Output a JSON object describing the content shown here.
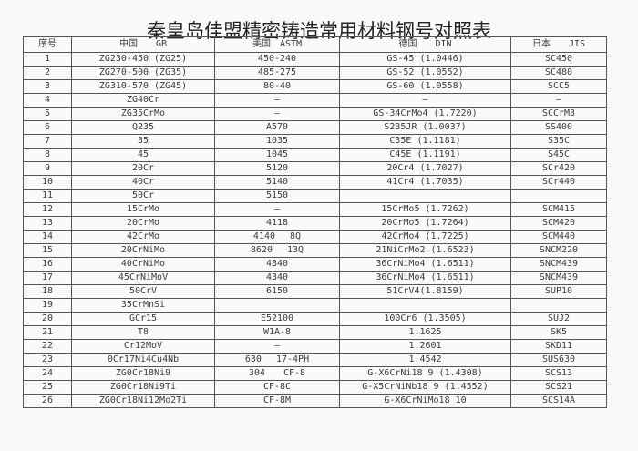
{
  "title": "秦皇岛佳盟精密铸造常用材料钢号对照表",
  "headers": [
    "序号",
    "中国　　GB",
    "美国　ASTM",
    "德国　　DIN",
    "日本　　JIS"
  ],
  "rows": [
    [
      "1",
      "ZG230-450 (ZG25)",
      "450-240",
      "GS-45 (1.0446)",
      "SC450"
    ],
    [
      "2",
      "ZG270-500 (ZG35)",
      "485-275",
      "GS-52 (1.0552)",
      "SC480"
    ],
    [
      "3",
      "ZG310-570 (ZG45)",
      "80-40",
      "GS-60 (1.0558)",
      "SCC5"
    ],
    [
      "4",
      "ZG40Cr",
      "—",
      "—",
      "—"
    ],
    [
      "5",
      "ZG35CrMo",
      "—",
      "GS-34CrMo4 (1.7220)",
      "SCCrM3"
    ],
    [
      "6",
      "Q235",
      "A570",
      "S235JR (1.0037)",
      "SS400"
    ],
    [
      "7",
      "35",
      "1035",
      "C35E (1.1181)",
      "S35C"
    ],
    [
      "8",
      "45",
      "1045",
      "C45E (1.1191)",
      "S45C"
    ],
    [
      "9",
      "20Cr",
      "5120",
      "20Cr4 (1.7027)",
      "SCr420"
    ],
    [
      "10",
      "40Cr",
      "5140",
      "41Cr4 (1.7035)",
      "SCr440"
    ],
    [
      "11",
      "50Cr",
      "5150",
      "",
      ""
    ],
    [
      "12",
      "15CrMo",
      "—",
      "15CrMo5 (1.7262)",
      "SCM415"
    ],
    [
      "13",
      "20CrMo",
      "4118",
      "20CrMo5 (1.7264)",
      "SCM420"
    ],
    [
      "14",
      "42CrMo",
      "4140　 8Q",
      "42CrMo4 (1.7225)",
      "SCM440"
    ],
    [
      "15",
      "20CrNiMo",
      "8620　 13Q",
      "21NiCrMo2 (1.6523)",
      "SNCM220"
    ],
    [
      "16",
      "40CrNiMo",
      "4340",
      "36CrNiMo4 (1.6511)",
      "SNCM439"
    ],
    [
      "17",
      "45CrNiMoV",
      "4340",
      "36CrNiMo4 (1.6511)",
      "SNCM439"
    ],
    [
      "18",
      "50CrV",
      "6150",
      "51CrV4(1.8159)",
      "SUP10"
    ],
    [
      "19",
      "35CrMnSi",
      "",
      "",
      ""
    ],
    [
      "20",
      "GCr15",
      "E52100",
      "100Cr6 (1.3505)",
      "SUJ2"
    ],
    [
      "21",
      "T8",
      "W1A-8",
      "1.1625",
      "SK5"
    ],
    [
      "22",
      "Cr12MoV",
      "—",
      "1.2601",
      "SKD11"
    ],
    [
      "23",
      "0Cr17Ni4Cu4Nb",
      "630　 17-4PH",
      "1.4542",
      "SUS630"
    ],
    [
      "24",
      "ZG0Cr18Ni9",
      "304　　CF-8",
      "G-X6CrNi18 9 (1.4308)",
      "SCS13"
    ],
    [
      "25",
      "ZG0Cr18Ni9Ti",
      "CF-8C",
      "G-X5CrNiNb18 9 (1.4552)",
      "SCS21"
    ],
    [
      "26",
      "ZG0Cr18Ni12Mo2Ti",
      "CF-8M",
      "G-X6CrNiMo18 10",
      "SCS14A"
    ]
  ]
}
